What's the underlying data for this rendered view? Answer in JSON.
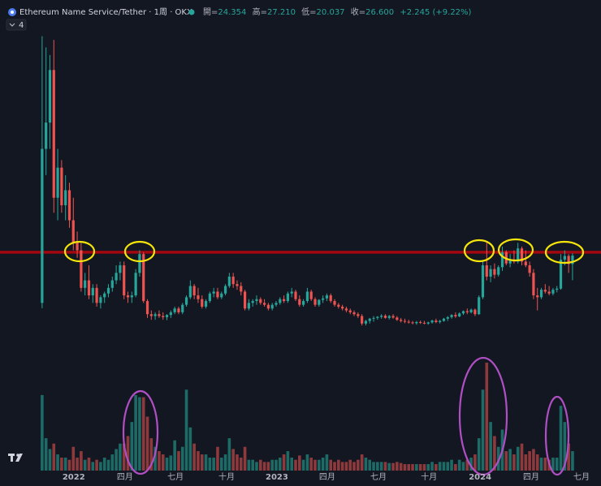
{
  "title": "Ethereum Name Service/Tether · 1周 · OKX",
  "indicator_count": "4",
  "legend": [
    {
      "label": "開=",
      "value": "24.354"
    },
    {
      "label": "高=",
      "value": "27.210"
    },
    {
      "label": "低=",
      "value": "20.037"
    },
    {
      "label": "收=",
      "value": "26.600"
    }
  ],
  "change": "+2.245 (+9.22%)",
  "chart_data": {
    "type": "candlestick",
    "up_color": "#26a69a",
    "down_color": "#ef5350",
    "volume_up_color": "#1d6b66",
    "volume_down_color": "#8e3a3c",
    "xlim": [
      -10.8,
      143.3
    ],
    "ylim": [
      1.76,
      89.24
    ],
    "volume_lim": [
      0,
      100
    ],
    "grid": true,
    "horizontal_line": {
      "value": 27.5,
      "color": "#a3070f"
    },
    "xticks": [
      {
        "value": 8.1,
        "label": "2022"
      },
      {
        "value": 21.25,
        "label": "四月"
      },
      {
        "value": 34.2,
        "label": "七月"
      },
      {
        "value": 47.3,
        "label": "十月"
      },
      {
        "value": 60.2,
        "label": "2023"
      },
      {
        "value": 73.1,
        "label": "四月"
      },
      {
        "value": 86.25,
        "label": "七月"
      },
      {
        "value": 99.2,
        "label": "十月"
      },
      {
        "value": 112.3,
        "label": "2024"
      },
      {
        "value": 125.4,
        "label": "四月"
      },
      {
        "value": 138.3,
        "label": "七月"
      }
    ],
    "ohlc": [
      [
        14,
        85,
        12.6,
        55
      ],
      [
        55,
        82,
        48,
        62
      ],
      [
        62,
        80,
        55,
        76
      ],
      [
        76,
        84,
        38,
        42
      ],
      [
        42,
        55,
        36,
        50
      ],
      [
        50,
        52,
        38,
        40
      ],
      [
        40,
        48,
        36,
        44
      ],
      [
        44,
        46,
        34,
        36
      ],
      [
        36,
        42,
        28,
        30
      ],
      [
        30,
        33,
        26,
        28
      ],
      [
        28,
        30,
        17,
        18
      ],
      [
        18,
        22,
        16,
        20
      ],
      [
        20,
        24,
        15,
        16
      ],
      [
        16,
        19,
        14,
        18
      ],
      [
        18,
        19,
        13,
        14
      ],
      [
        14,
        16,
        12.5,
        15.5
      ],
      [
        15.5,
        17,
        14,
        16.5
      ],
      [
        16.5,
        19,
        15.5,
        18
      ],
      [
        18,
        21,
        17,
        20
      ],
      [
        20,
        24,
        19,
        22
      ],
      [
        22,
        25,
        20,
        24
      ],
      [
        24,
        25,
        15,
        16
      ],
      [
        16,
        17,
        14,
        15.5
      ],
      [
        15.5,
        17,
        14,
        16
      ],
      [
        16,
        23,
        15.5,
        22
      ],
      [
        22,
        28,
        21,
        27
      ],
      [
        27,
        27.5,
        14,
        14.5
      ],
      [
        14.5,
        15,
        10,
        11
      ],
      [
        11,
        12,
        9.5,
        10.5
      ],
      [
        10.5,
        11.5,
        9.5,
        11
      ],
      [
        11,
        12,
        10,
        10.5
      ],
      [
        10.5,
        11.5,
        9.5,
        10.2
      ],
      [
        10.2,
        11,
        9.4,
        10.8
      ],
      [
        10.8,
        12,
        10,
        11.5
      ],
      [
        11.5,
        13,
        11,
        12.5
      ],
      [
        12.5,
        13,
        11,
        11.5
      ],
      [
        11.5,
        14,
        11,
        13.5
      ],
      [
        13.5,
        16,
        13,
        15.5
      ],
      [
        15.5,
        20,
        15,
        18.5
      ],
      [
        18.5,
        19,
        15,
        16
      ],
      [
        16,
        18,
        14,
        15
      ],
      [
        15,
        16,
        12.5,
        13
      ],
      [
        13,
        15,
        12.5,
        14.5
      ],
      [
        14.5,
        17,
        14,
        16.5
      ],
      [
        16.5,
        18,
        15.5,
        17
      ],
      [
        17,
        18,
        15,
        15.5
      ],
      [
        15.5,
        17,
        15,
        16.5
      ],
      [
        16.5,
        19,
        16,
        18.5
      ],
      [
        18.5,
        22,
        18,
        21
      ],
      [
        21,
        22,
        18,
        19
      ],
      [
        19,
        20,
        17.5,
        18.5
      ],
      [
        18.5,
        19.5,
        16,
        17
      ],
      [
        17,
        17.5,
        12,
        12.5
      ],
      [
        12.5,
        15,
        12,
        14
      ],
      [
        14,
        15,
        13,
        14.5
      ],
      [
        14.5,
        16,
        13.5,
        15
      ],
      [
        15,
        15.5,
        13.5,
        14
      ],
      [
        14,
        15,
        13,
        13.5
      ],
      [
        13.5,
        14,
        12,
        12.5
      ],
      [
        12.5,
        14,
        12,
        13.5
      ],
      [
        13.5,
        14.5,
        13,
        14
      ],
      [
        14,
        15.5,
        13.5,
        15
      ],
      [
        15,
        16,
        14,
        14.5
      ],
      [
        14.5,
        17,
        14,
        16.5
      ],
      [
        16.5,
        18,
        15.5,
        17
      ],
      [
        17,
        17.5,
        14.5,
        15
      ],
      [
        15,
        16,
        13,
        13.5
      ],
      [
        13.5,
        15,
        13,
        14.5
      ],
      [
        14.5,
        18,
        14,
        17
      ],
      [
        17,
        17.5,
        14.5,
        15
      ],
      [
        15,
        15.5,
        13,
        13.5
      ],
      [
        13.5,
        15,
        13,
        14.8
      ],
      [
        14.8,
        16,
        14,
        15.2
      ],
      [
        15.2,
        16.5,
        14.5,
        16
      ],
      [
        16,
        16.5,
        14,
        14.5
      ],
      [
        14.5,
        15,
        13,
        13.5
      ],
      [
        13.5,
        14,
        12.5,
        13
      ],
      [
        13,
        13.5,
        12,
        12.5
      ],
      [
        12.5,
        13,
        11.5,
        12
      ],
      [
        12,
        12.5,
        11,
        11.5
      ],
      [
        11.5,
        12,
        10.5,
        11
      ],
      [
        11,
        11.5,
        10,
        10.5
      ],
      [
        10.5,
        11,
        8,
        8.5
      ],
      [
        8.5,
        9.5,
        8,
        9.2
      ],
      [
        9.2,
        10,
        8.5,
        9.8
      ],
      [
        9.8,
        10.5,
        9,
        10
      ],
      [
        10,
        10.5,
        9.5,
        10.3
      ],
      [
        10.3,
        11,
        9.8,
        10.6
      ],
      [
        10.6,
        11,
        9.8,
        10
      ],
      [
        10,
        10.8,
        9.6,
        10.5
      ],
      [
        10.5,
        11,
        9.8,
        10.1
      ],
      [
        10.1,
        10.5,
        9.2,
        9.5
      ],
      [
        9.5,
        10,
        8.8,
        9.2
      ],
      [
        9.2,
        9.8,
        8.6,
        9
      ],
      [
        9,
        9.5,
        8.5,
        8.8
      ],
      [
        8.8,
        9.2,
        8.3,
        8.6
      ],
      [
        8.6,
        9.2,
        8.2,
        8.9
      ],
      [
        8.9,
        9.3,
        8.4,
        8.7
      ],
      [
        8.7,
        9.2,
        8.3,
        8.5
      ],
      [
        8.5,
        9,
        8.2,
        8.8
      ],
      [
        8.8,
        9.5,
        8.5,
        9.3
      ],
      [
        9.3,
        9.8,
        8.6,
        8.9
      ],
      [
        8.9,
        9.5,
        8.5,
        9.2
      ],
      [
        9.2,
        10,
        9,
        9.8
      ],
      [
        9.8,
        10.5,
        9.2,
        10.2
      ],
      [
        10.2,
        11,
        9.8,
        10.8
      ],
      [
        10.8,
        11.5,
        10,
        10.4
      ],
      [
        10.4,
        11.5,
        10.2,
        11.2
      ],
      [
        11.2,
        12,
        10.8,
        11.8
      ],
      [
        11.8,
        12.5,
        11,
        11.5
      ],
      [
        11.5,
        12.5,
        11.2,
        12.2
      ],
      [
        12.2,
        12.5,
        10.5,
        11
      ],
      [
        11,
        16,
        10.8,
        15.5
      ],
      [
        15.5,
        25,
        15,
        24
      ],
      [
        24,
        30,
        20,
        21
      ],
      [
        21,
        24,
        19.5,
        23
      ],
      [
        23,
        24.5,
        20.5,
        21.5
      ],
      [
        21.5,
        24,
        21,
        23.5
      ],
      [
        23.5,
        29,
        22.5,
        27.5
      ],
      [
        27.5,
        28,
        24,
        24.5
      ],
      [
        24.5,
        27,
        23.5,
        25.5
      ],
      [
        25.5,
        28,
        24.5,
        25
      ],
      [
        25,
        30,
        24.5,
        28.5
      ],
      [
        28.5,
        29,
        24,
        25
      ],
      [
        25,
        28,
        23.5,
        24
      ],
      [
        24,
        25,
        21,
        22
      ],
      [
        22,
        23,
        15,
        16
      ],
      [
        16,
        18,
        12,
        15.5
      ],
      [
        15.5,
        18,
        15,
        17.5
      ],
      [
        17.5,
        19,
        16.5,
        17
      ],
      [
        17,
        18.5,
        16,
        16.5
      ],
      [
        16.5,
        18,
        16,
        17.5
      ],
      [
        17.5,
        18.5,
        16.8,
        17.8
      ],
      [
        17.8,
        27,
        17.5,
        25.5
      ],
      [
        25.5,
        28,
        24,
        26.5
      ],
      [
        26.5,
        27,
        22,
        24.355
      ],
      [
        24.354,
        27.21,
        20.037,
        26.6
      ]
    ],
    "volume": [
      70,
      30,
      20,
      25,
      15,
      12,
      12,
      10,
      22,
      12,
      18,
      10,
      12,
      8,
      10,
      8,
      12,
      10,
      15,
      20,
      25,
      25,
      32,
      45,
      70,
      68,
      68,
      50,
      30,
      22,
      18,
      15,
      12,
      14,
      28,
      18,
      22,
      75,
      40,
      25,
      18,
      15,
      15,
      12,
      12,
      22,
      12,
      15,
      30,
      20,
      15,
      12,
      22,
      10,
      10,
      8,
      10,
      8,
      8,
      10,
      10,
      12,
      15,
      18,
      12,
      10,
      14,
      10,
      15,
      12,
      10,
      10,
      12,
      15,
      10,
      8,
      10,
      8,
      8,
      10,
      8,
      10,
      15,
      12,
      10,
      8,
      8,
      8,
      8,
      7,
      7,
      8,
      7,
      6,
      6,
      6,
      6,
      6,
      6,
      6,
      8,
      6,
      8,
      8,
      8,
      10,
      6,
      10,
      8,
      10,
      12,
      15,
      30,
      75,
      100,
      45,
      32,
      22,
      38,
      18,
      20,
      15,
      22,
      25,
      15,
      18,
      20,
      15,
      12,
      12,
      10,
      12,
      12,
      60,
      45,
      25,
      18
    ]
  }
}
